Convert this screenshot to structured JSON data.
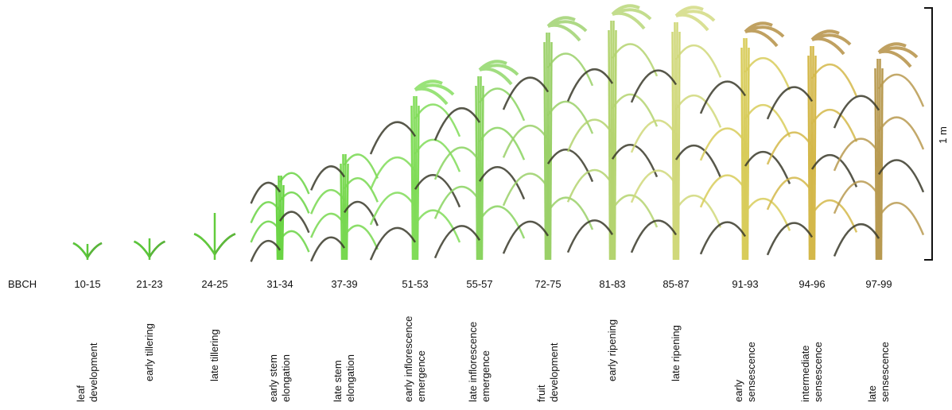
{
  "row_label": "BBCH",
  "scale_label": "1 m",
  "stages": [
    {
      "code": "10-15",
      "name": [
        "leaf",
        "development"
      ]
    },
    {
      "code": "21-23",
      "name": [
        "early tillering"
      ]
    },
    {
      "code": "24-25",
      "name": [
        "late tillering"
      ]
    },
    {
      "code": "31-34",
      "name": [
        "early stem",
        "elongation"
      ]
    },
    {
      "code": "37-39",
      "name": [
        "late stem",
        "elongation"
      ]
    },
    {
      "code": "51-53",
      "name": [
        "early inflorescence",
        "emergence"
      ]
    },
    {
      "code": "55-57",
      "name": [
        "late inflorescence",
        "emergence"
      ]
    },
    {
      "code": "72-75",
      "name": [
        "fruit",
        "development"
      ]
    },
    {
      "code": "81-83",
      "name": [
        "early ripening"
      ]
    },
    {
      "code": "85-87",
      "name": [
        "late ripening"
      ]
    },
    {
      "code": "91-93",
      "name": [
        "early",
        "sensescence"
      ]
    },
    {
      "code": "94-96",
      "name": [
        "intermediate",
        "sensescence"
      ]
    },
    {
      "code": "97-99",
      "name": [
        "late",
        "sensescence"
      ]
    }
  ]
}
